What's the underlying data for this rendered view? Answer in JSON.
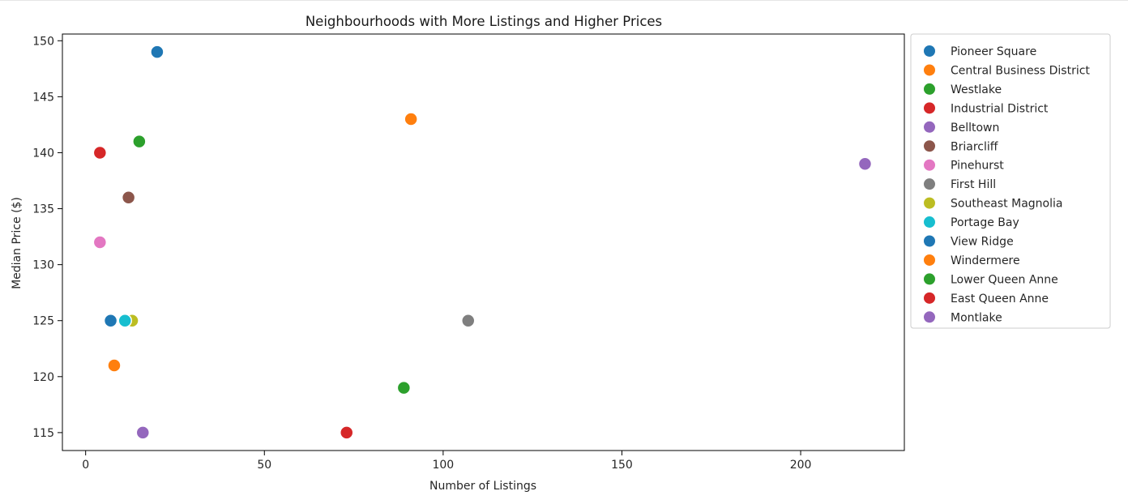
{
  "chart_data": {
    "type": "scatter",
    "title": "Neighbourhoods with More Listings and Higher Prices",
    "xlabel": "Number of Listings",
    "ylabel": "Median Price ($)",
    "xlim": [
      -6.5,
      229
    ],
    "ylim": [
      113.4,
      150.6
    ],
    "xticks": [
      0,
      50,
      100,
      150,
      200
    ],
    "yticks": [
      115,
      120,
      125,
      130,
      135,
      140,
      145,
      150
    ],
    "grid": false,
    "legend_position": "outside-right-top",
    "series": [
      {
        "name": "Pioneer Square",
        "color": "#1f77b4",
        "x": 20,
        "y": 149
      },
      {
        "name": "Central Business District",
        "color": "#ff7f0e",
        "x": 91,
        "y": 143
      },
      {
        "name": "Westlake",
        "color": "#2ca02c",
        "x": 15,
        "y": 141
      },
      {
        "name": "Industrial District",
        "color": "#d62728",
        "x": 4,
        "y": 140
      },
      {
        "name": "Belltown",
        "color": "#9467bd",
        "x": 218,
        "y": 139
      },
      {
        "name": "Briarcliff",
        "color": "#8c564b",
        "x": 12,
        "y": 136
      },
      {
        "name": "Pinehurst",
        "color": "#e377c2",
        "x": 4,
        "y": 132
      },
      {
        "name": "First Hill",
        "color": "#7f7f7f",
        "x": 107,
        "y": 125
      },
      {
        "name": "Southeast Magnolia",
        "color": "#bcbd22",
        "x": 13,
        "y": 125
      },
      {
        "name": "Portage Bay",
        "color": "#17becf",
        "x": 11,
        "y": 125
      },
      {
        "name": "View Ridge",
        "color": "#1f77b4",
        "x": 7,
        "y": 125
      },
      {
        "name": "Windermere",
        "color": "#ff7f0e",
        "x": 8,
        "y": 121
      },
      {
        "name": "Lower Queen Anne",
        "color": "#2ca02c",
        "x": 89,
        "y": 119
      },
      {
        "name": "East Queen Anne",
        "color": "#d62728",
        "x": 73,
        "y": 115
      },
      {
        "name": "Montlake",
        "color": "#9467bd",
        "x": 16,
        "y": 115
      }
    ]
  }
}
